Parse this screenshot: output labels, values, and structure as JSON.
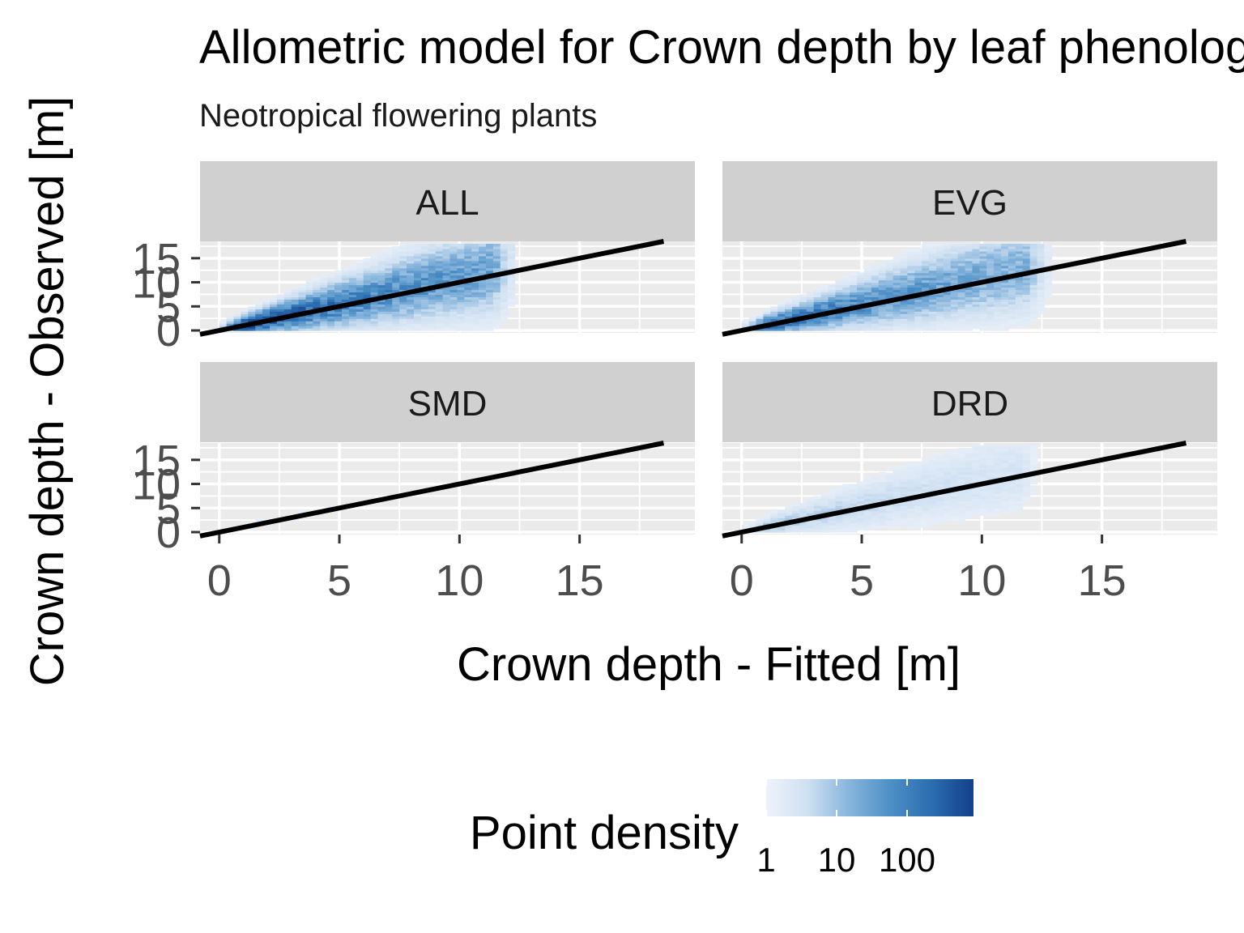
{
  "chart_data": {
    "type": "heatmap",
    "title": "Allometric model for Crown depth by leaf phenology",
    "subtitle": "Neotropical flowering plants",
    "xlabel": "Crown depth - Fitted [m]",
    "ylabel": "Crown depth - Observed [m]",
    "xlim": [
      -0.8,
      19.8
    ],
    "ylim": [
      -0.5,
      18.5
    ],
    "x_ticks": [
      "0",
      "5",
      "10",
      "15"
    ],
    "y_ticks": [
      "0",
      "5",
      "10",
      "15"
    ],
    "x_tick_values": [
      0,
      5,
      10,
      15
    ],
    "y_tick_values": [
      0,
      5,
      10,
      15
    ],
    "reference_line": {
      "type": "1:1",
      "color": "#000000"
    },
    "grid": true,
    "panels": [
      {
        "label": "ALL",
        "density_scale": 1.0,
        "x_range": [
          0,
          12.3
        ],
        "y_max": 18
      },
      {
        "label": "EVG",
        "density_scale": 0.85,
        "x_range": [
          0,
          12.8
        ],
        "y_max": 18
      },
      {
        "label": "SMD",
        "density_scale": 0.06,
        "x_range": [
          0,
          11.5
        ],
        "y_max": 10
      },
      {
        "label": "DRD",
        "density_scale": 0.3,
        "x_range": [
          0,
          12.5
        ],
        "y_max": 18
      }
    ],
    "legend": {
      "title": "Point density",
      "position": "bottom",
      "scale": "log",
      "labels": [
        "1",
        "10",
        "100"
      ],
      "colors": [
        "#eef3fb",
        "#cfe0f1",
        "#87b5dc",
        "#4d8fc6",
        "#2b6cb0",
        "#13408b"
      ]
    }
  }
}
